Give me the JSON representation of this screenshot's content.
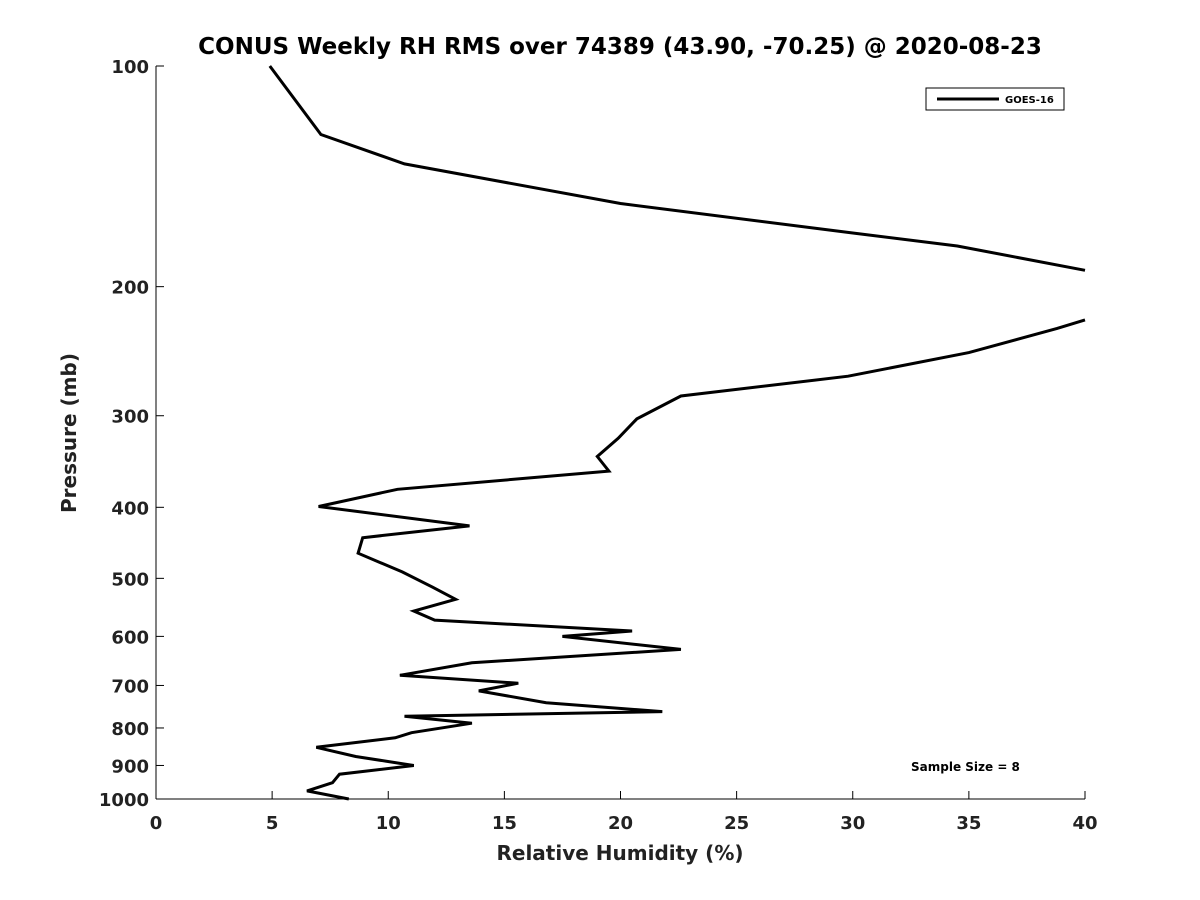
{
  "chart_data": {
    "type": "line",
    "title": "CONUS Weekly RH RMS over 74389 (43.90, -70.25) @ 2020-08-23",
    "xlabel": "Relative Humidity (%)",
    "ylabel": "Pressure (mb)",
    "xlim": [
      0,
      40
    ],
    "ylim": [
      100,
      1000
    ],
    "y_scale": "log",
    "y_inverted": true,
    "x_ticks": [
      0,
      5,
      10,
      15,
      20,
      25,
      30,
      35,
      40
    ],
    "y_ticks": [
      100,
      200,
      300,
      400,
      500,
      600,
      700,
      800,
      900,
      1000
    ],
    "grid": false,
    "legend": "top-right",
    "annotation": "Sample Size = 8",
    "series": [
      {
        "name": "GOES-16",
        "color": "#000000",
        "segments": [
          [
            {
              "x": 8.3,
              "y": 1000
            },
            {
              "x": 6.5,
              "y": 975
            },
            {
              "x": 7.6,
              "y": 950
            },
            {
              "x": 7.9,
              "y": 925
            },
            {
              "x": 11.1,
              "y": 900
            },
            {
              "x": 8.6,
              "y": 875
            },
            {
              "x": 6.9,
              "y": 850
            },
            {
              "x": 10.3,
              "y": 825
            },
            {
              "x": 11.0,
              "y": 812
            },
            {
              "x": 13.6,
              "y": 788
            },
            {
              "x": 10.7,
              "y": 771
            },
            {
              "x": 21.8,
              "y": 760
            },
            {
              "x": 16.8,
              "y": 739
            },
            {
              "x": 13.9,
              "y": 712
            },
            {
              "x": 15.6,
              "y": 695
            },
            {
              "x": 10.5,
              "y": 678
            },
            {
              "x": 13.6,
              "y": 652
            },
            {
              "x": 22.6,
              "y": 625
            },
            {
              "x": 17.5,
              "y": 600
            },
            {
              "x": 20.5,
              "y": 590
            },
            {
              "x": 12.0,
              "y": 570
            },
            {
              "x": 11.1,
              "y": 554
            },
            {
              "x": 12.9,
              "y": 534
            },
            {
              "x": 11.9,
              "y": 514
            },
            {
              "x": 10.6,
              "y": 490
            },
            {
              "x": 8.7,
              "y": 462
            },
            {
              "x": 8.9,
              "y": 440
            },
            {
              "x": 13.5,
              "y": 424
            },
            {
              "x": 7.0,
              "y": 399
            },
            {
              "x": 10.4,
              "y": 378
            },
            {
              "x": 19.5,
              "y": 357
            },
            {
              "x": 19.0,
              "y": 341
            },
            {
              "x": 19.9,
              "y": 322
            },
            {
              "x": 20.7,
              "y": 303
            },
            {
              "x": 22.6,
              "y": 282
            },
            {
              "x": 29.8,
              "y": 265
            },
            {
              "x": 35.0,
              "y": 246
            },
            {
              "x": 38.8,
              "y": 228
            },
            {
              "x": 40.0,
              "y": 222
            }
          ],
          [
            {
              "x": 40.0,
              "y": 190
            },
            {
              "x": 34.5,
              "y": 176
            },
            {
              "x": 30.0,
              "y": 169
            },
            {
              "x": 20.0,
              "y": 154
            },
            {
              "x": 10.7,
              "y": 136
            },
            {
              "x": 7.1,
              "y": 124
            },
            {
              "x": 4.9,
              "y": 100
            }
          ]
        ]
      }
    ]
  }
}
